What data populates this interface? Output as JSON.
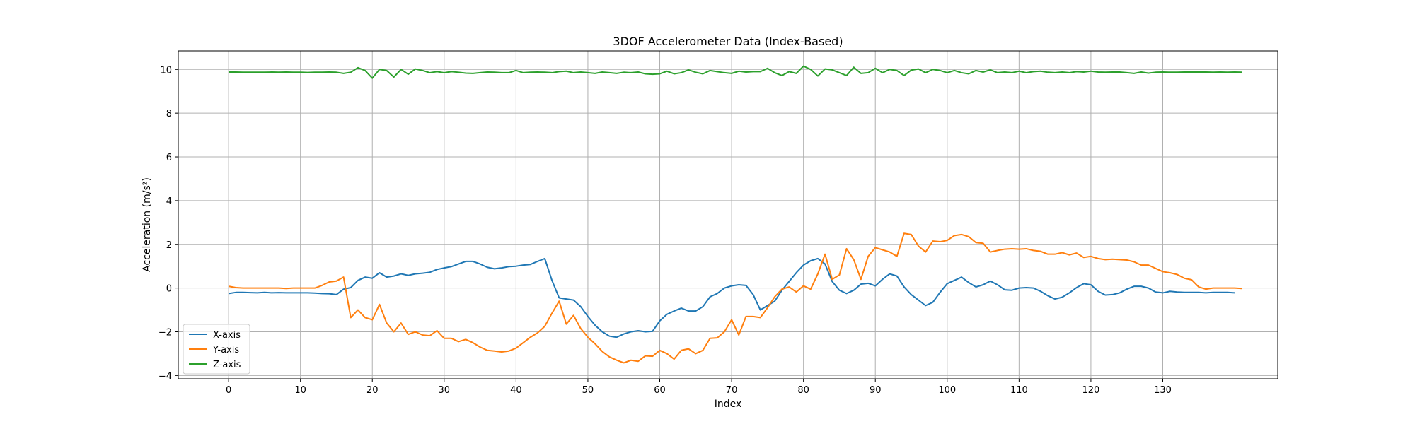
{
  "chart_data": {
    "type": "line",
    "title": "3DOF Accelerometer Data (Index-Based)",
    "xlabel": "Index",
    "ylabel": "Acceleration (m/s²)",
    "xlim": [
      -7,
      146
    ],
    "ylim": [
      -4.15,
      10.85
    ],
    "xticks": [
      0,
      10,
      20,
      30,
      40,
      50,
      60,
      70,
      80,
      90,
      100,
      110,
      120,
      130
    ],
    "yticks": [
      -4,
      -2,
      0,
      2,
      4,
      6,
      8,
      10
    ],
    "grid": true,
    "legend_position": "lower-left",
    "series": [
      {
        "name": "X-axis",
        "color": "#1f77b4",
        "values": [
          -0.25,
          -0.2,
          -0.2,
          -0.21,
          -0.22,
          -0.2,
          -0.22,
          -0.21,
          -0.22,
          -0.22,
          -0.22,
          -0.22,
          -0.23,
          -0.25,
          -0.26,
          -0.3,
          -0.05,
          0.02,
          0.35,
          0.5,
          0.45,
          0.7,
          0.5,
          0.55,
          0.65,
          0.58,
          0.65,
          0.68,
          0.72,
          0.85,
          0.92,
          0.98,
          1.1,
          1.22,
          1.22,
          1.1,
          0.95,
          0.88,
          0.92,
          0.98,
          1.0,
          1.05,
          1.08,
          1.22,
          1.35,
          0.35,
          -0.45,
          -0.5,
          -0.55,
          -0.85,
          -1.3,
          -1.7,
          -2.0,
          -2.2,
          -2.25,
          -2.1,
          -2.0,
          -1.95,
          -2.0,
          -1.98,
          -1.5,
          -1.2,
          -1.05,
          -0.92,
          -1.05,
          -1.05,
          -0.85,
          -0.4,
          -0.25,
          0.0,
          0.1,
          0.15,
          0.12,
          -0.3,
          -1.0,
          -0.8,
          -0.6,
          -0.1,
          0.3,
          0.7,
          1.05,
          1.25,
          1.35,
          1.1,
          0.3,
          -0.1,
          -0.25,
          -0.1,
          0.18,
          0.22,
          0.1,
          0.4,
          0.65,
          0.55,
          0.05,
          -0.3,
          -0.55,
          -0.8,
          -0.65,
          -0.2,
          0.2,
          0.35,
          0.5,
          0.25,
          0.05,
          0.15,
          0.32,
          0.15,
          -0.08,
          -0.1,
          0.0,
          0.02,
          0.0,
          -0.15,
          -0.35,
          -0.5,
          -0.42,
          -0.22,
          0.02,
          0.2,
          0.15,
          -0.15,
          -0.32,
          -0.3,
          -0.22,
          -0.05,
          0.08,
          0.08,
          0.0,
          -0.18,
          -0.22,
          -0.15,
          -0.18,
          -0.2,
          -0.2,
          -0.2,
          -0.22,
          -0.2,
          -0.2,
          -0.2,
          -0.22
        ]
      },
      {
        "name": "Y-axis",
        "color": "#ff7f0e",
        "values": [
          0.08,
          0.02,
          0.0,
          0.0,
          0.0,
          0.0,
          0.0,
          0.0,
          -0.02,
          0.0,
          0.0,
          0.0,
          0.0,
          0.12,
          0.28,
          0.32,
          0.5,
          -1.35,
          -1.0,
          -1.35,
          -1.45,
          -0.75,
          -1.6,
          -2.0,
          -1.6,
          -2.12,
          -2.0,
          -2.15,
          -2.18,
          -1.95,
          -2.3,
          -2.3,
          -2.45,
          -2.35,
          -2.5,
          -2.7,
          -2.85,
          -2.88,
          -2.92,
          -2.88,
          -2.75,
          -2.5,
          -2.25,
          -2.05,
          -1.75,
          -1.15,
          -0.6,
          -1.65,
          -1.25,
          -1.85,
          -2.25,
          -2.55,
          -2.9,
          -3.15,
          -3.3,
          -3.42,
          -3.3,
          -3.35,
          -3.1,
          -3.12,
          -2.85,
          -3.0,
          -3.25,
          -2.85,
          -2.78,
          -3.0,
          -2.85,
          -2.3,
          -2.28,
          -2.0,
          -1.45,
          -2.15,
          -1.3,
          -1.3,
          -1.35,
          -0.9,
          -0.4,
          -0.05,
          0.05,
          -0.18,
          0.1,
          -0.05,
          0.65,
          1.55,
          0.4,
          0.6,
          1.8,
          1.3,
          0.4,
          1.45,
          1.85,
          1.75,
          1.65,
          1.45,
          2.5,
          2.45,
          1.92,
          1.65,
          2.15,
          2.12,
          2.18,
          2.4,
          2.45,
          2.35,
          2.08,
          2.05,
          1.65,
          1.72,
          1.78,
          1.8,
          1.78,
          1.8,
          1.72,
          1.68,
          1.55,
          1.55,
          1.62,
          1.52,
          1.6,
          1.4,
          1.45,
          1.35,
          1.3,
          1.32,
          1.3,
          1.28,
          1.2,
          1.05,
          1.05,
          0.9,
          0.75,
          0.7,
          0.62,
          0.45,
          0.38,
          0.05,
          -0.05,
          0.0,
          0.0,
          0.0,
          0.0,
          -0.02
        ]
      },
      {
        "name": "Z-axis",
        "color": "#2ca02c",
        "values": [
          9.88,
          9.88,
          9.87,
          9.87,
          9.87,
          9.87,
          9.88,
          9.87,
          9.88,
          9.87,
          9.87,
          9.86,
          9.87,
          9.87,
          9.88,
          9.87,
          9.82,
          9.87,
          10.08,
          9.95,
          9.6,
          10.0,
          9.95,
          9.65,
          10.0,
          9.78,
          10.02,
          9.95,
          9.85,
          9.9,
          9.85,
          9.9,
          9.87,
          9.83,
          9.82,
          9.85,
          9.88,
          9.87,
          9.85,
          9.85,
          9.95,
          9.85,
          9.87,
          9.88,
          9.87,
          9.85,
          9.9,
          9.92,
          9.85,
          9.88,
          9.85,
          9.82,
          9.88,
          9.85,
          9.82,
          9.87,
          9.85,
          9.88,
          9.8,
          9.78,
          9.8,
          9.92,
          9.8,
          9.85,
          9.98,
          9.87,
          9.8,
          9.95,
          9.9,
          9.85,
          9.82,
          9.92,
          9.88,
          9.9,
          9.9,
          10.05,
          9.85,
          9.72,
          9.9,
          9.82,
          10.15,
          10.0,
          9.7,
          10.02,
          9.98,
          9.85,
          9.72,
          10.1,
          9.82,
          9.85,
          10.05,
          9.85,
          10.0,
          9.95,
          9.72,
          9.97,
          10.02,
          9.85,
          10.0,
          9.95,
          9.85,
          9.95,
          9.85,
          9.8,
          9.95,
          9.88,
          9.98,
          9.85,
          9.88,
          9.85,
          9.92,
          9.85,
          9.9,
          9.92,
          9.87,
          9.85,
          9.88,
          9.85,
          9.9,
          9.88,
          9.92,
          9.88,
          9.87,
          9.88,
          9.88,
          9.85,
          9.82,
          9.88,
          9.83,
          9.87,
          9.88,
          9.87,
          9.87,
          9.88,
          9.88,
          9.88,
          9.88,
          9.87,
          9.88,
          9.87,
          9.88,
          9.87
        ]
      }
    ]
  }
}
